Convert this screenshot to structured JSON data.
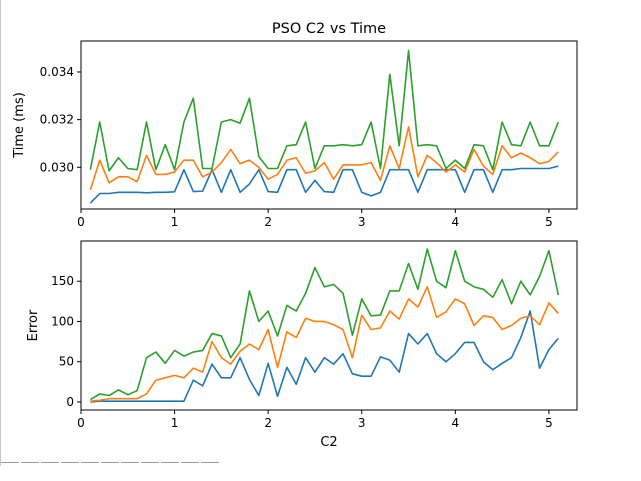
{
  "chart_data": [
    {
      "type": "line",
      "title": "PSO C2 vs Time",
      "xlabel": "",
      "ylabel": "Time (ms)",
      "xlim": [
        0.0,
        5.3
      ],
      "ylim": [
        0.02825,
        0.0353
      ],
      "xticks": [
        0,
        1,
        2,
        3,
        4,
        5
      ],
      "xtick_labels": [
        "0",
        "1",
        "2",
        "3",
        "4",
        "5"
      ],
      "yticks": [
        0.03,
        0.032,
        0.034
      ],
      "ytick_labels": [
        "0.030",
        "0.032",
        "0.034"
      ],
      "grid": false,
      "x": [
        0.1,
        0.2,
        0.3,
        0.4,
        0.5,
        0.6,
        0.7,
        0.8,
        0.9,
        1.0,
        1.1,
        1.2,
        1.3,
        1.4,
        1.5,
        1.6,
        1.7,
        1.8,
        1.9,
        2.0,
        2.1,
        2.2,
        2.3,
        2.4,
        2.5,
        2.6,
        2.7,
        2.8,
        2.9,
        3.0,
        3.1,
        3.2,
        3.3,
        3.4,
        3.5,
        3.6,
        3.7,
        3.8,
        3.9,
        4.0,
        4.1,
        4.2,
        4.3,
        4.4,
        4.5,
        4.6,
        4.7,
        4.8,
        4.9,
        5.0,
        5.1
      ],
      "series": [
        {
          "color": "#1f77b4",
          "values": [
            0.0285,
            0.0289,
            0.0289,
            0.02895,
            0.02895,
            0.02895,
            0.02893,
            0.02895,
            0.02895,
            0.02897,
            0.0299,
            0.02898,
            0.029,
            0.0299,
            0.02895,
            0.0299,
            0.02895,
            0.0293,
            0.0299,
            0.02898,
            0.02895,
            0.0299,
            0.0299,
            0.02895,
            0.02945,
            0.02898,
            0.02895,
            0.0299,
            0.0299,
            0.02895,
            0.0288,
            0.02895,
            0.0299,
            0.0299,
            0.0299,
            0.02895,
            0.0299,
            0.0299,
            0.0299,
            0.0299,
            0.02895,
            0.0299,
            0.0299,
            0.02895,
            0.0299,
            0.0299,
            0.02995,
            0.02995,
            0.02995,
            0.02995,
            0.03005
          ]
        },
        {
          "color": "#ff7f0e",
          "values": [
            0.02905,
            0.0303,
            0.02935,
            0.0296,
            0.0296,
            0.0294,
            0.0305,
            0.0297,
            0.0297,
            0.0298,
            0.0303,
            0.0303,
            0.0296,
            0.0298,
            0.0302,
            0.03075,
            0.03015,
            0.0303,
            0.03,
            0.0295,
            0.0297,
            0.0303,
            0.0304,
            0.02975,
            0.02985,
            0.0302,
            0.0295,
            0.0301,
            0.0301,
            0.0301,
            0.0302,
            0.02945,
            0.0309,
            0.02995,
            0.0317,
            0.0296,
            0.0305,
            0.0302,
            0.0298,
            0.0301,
            0.0298,
            0.03075,
            0.03005,
            0.0297,
            0.0309,
            0.0304,
            0.0306,
            0.0304,
            0.03015,
            0.03025,
            0.03065
          ]
        },
        {
          "color": "#2ca02c",
          "values": [
            0.0299,
            0.0319,
            0.02985,
            0.0304,
            0.02995,
            0.0299,
            0.0319,
            0.0299,
            0.03095,
            0.0299,
            0.0319,
            0.0329,
            0.02995,
            0.02995,
            0.0319,
            0.032,
            0.03185,
            0.0329,
            0.03045,
            0.02995,
            0.02995,
            0.0309,
            0.03095,
            0.0319,
            0.02995,
            0.0309,
            0.0309,
            0.03095,
            0.0309,
            0.03095,
            0.0319,
            0.02995,
            0.0339,
            0.0309,
            0.0349,
            0.0309,
            0.03095,
            0.0309,
            0.02995,
            0.0303,
            0.02995,
            0.03095,
            0.0309,
            0.0299,
            0.0319,
            0.03095,
            0.0309,
            0.0319,
            0.0309,
            0.0309,
            0.0319
          ]
        }
      ]
    },
    {
      "type": "line",
      "title": "",
      "xlabel": "C2",
      "ylabel": "Error",
      "xlim": [
        0.0,
        5.3
      ],
      "ylim": [
        -10,
        200
      ],
      "xticks": [
        0,
        1,
        2,
        3,
        4,
        5
      ],
      "xtick_labels": [
        "0",
        "1",
        "2",
        "3",
        "4",
        "5"
      ],
      "yticks": [
        0,
        50,
        100,
        150
      ],
      "ytick_labels": [
        "0",
        "50",
        "100",
        "150"
      ],
      "grid": false,
      "x": [
        0.1,
        0.2,
        0.3,
        0.4,
        0.5,
        0.6,
        0.7,
        0.8,
        0.9,
        1.0,
        1.1,
        1.2,
        1.3,
        1.4,
        1.5,
        1.6,
        1.7,
        1.8,
        1.9,
        2.0,
        2.1,
        2.2,
        2.3,
        2.4,
        2.5,
        2.6,
        2.7,
        2.8,
        2.9,
        3.0,
        3.1,
        3.2,
        3.3,
        3.4,
        3.5,
        3.6,
        3.7,
        3.8,
        3.9,
        4.0,
        4.1,
        4.2,
        4.3,
        4.4,
        4.5,
        4.6,
        4.7,
        4.8,
        4.9,
        5.0,
        5.1
      ],
      "series": [
        {
          "color": "#1f77b4",
          "values": [
            0,
            1,
            1,
            1,
            1,
            1,
            1,
            1,
            1,
            1,
            1,
            27,
            20,
            47,
            30,
            30,
            55,
            28,
            8,
            48,
            7,
            43,
            22,
            55,
            37,
            55,
            47,
            60,
            35,
            32,
            32,
            56,
            52,
            37,
            85,
            72,
            85,
            60,
            50,
            60,
            74,
            74,
            50,
            40,
            48,
            55,
            80,
            113,
            42,
            65,
            79
          ]
        },
        {
          "color": "#ff7f0e",
          "values": [
            1,
            2,
            4,
            4,
            4,
            4,
            10,
            27,
            30,
            33,
            30,
            42,
            37,
            75,
            55,
            47,
            63,
            72,
            65,
            90,
            43,
            87,
            80,
            104,
            100,
            100,
            96,
            90,
            55,
            108,
            90,
            92,
            113,
            103,
            128,
            118,
            143,
            105,
            112,
            128,
            122,
            95,
            107,
            105,
            90,
            95,
            104,
            107,
            96,
            123,
            110
          ]
        },
        {
          "color": "#2ca02c",
          "values": [
            3,
            10,
            8,
            15,
            9,
            14,
            55,
            62,
            48,
            64,
            57,
            62,
            64,
            85,
            82,
            55,
            72,
            138,
            100,
            113,
            82,
            120,
            113,
            135,
            167,
            143,
            146,
            135,
            83,
            128,
            107,
            108,
            138,
            138,
            172,
            140,
            190,
            150,
            142,
            188,
            150,
            143,
            140,
            130,
            152,
            122,
            150,
            133,
            156,
            188,
            133
          ]
        }
      ]
    }
  ]
}
